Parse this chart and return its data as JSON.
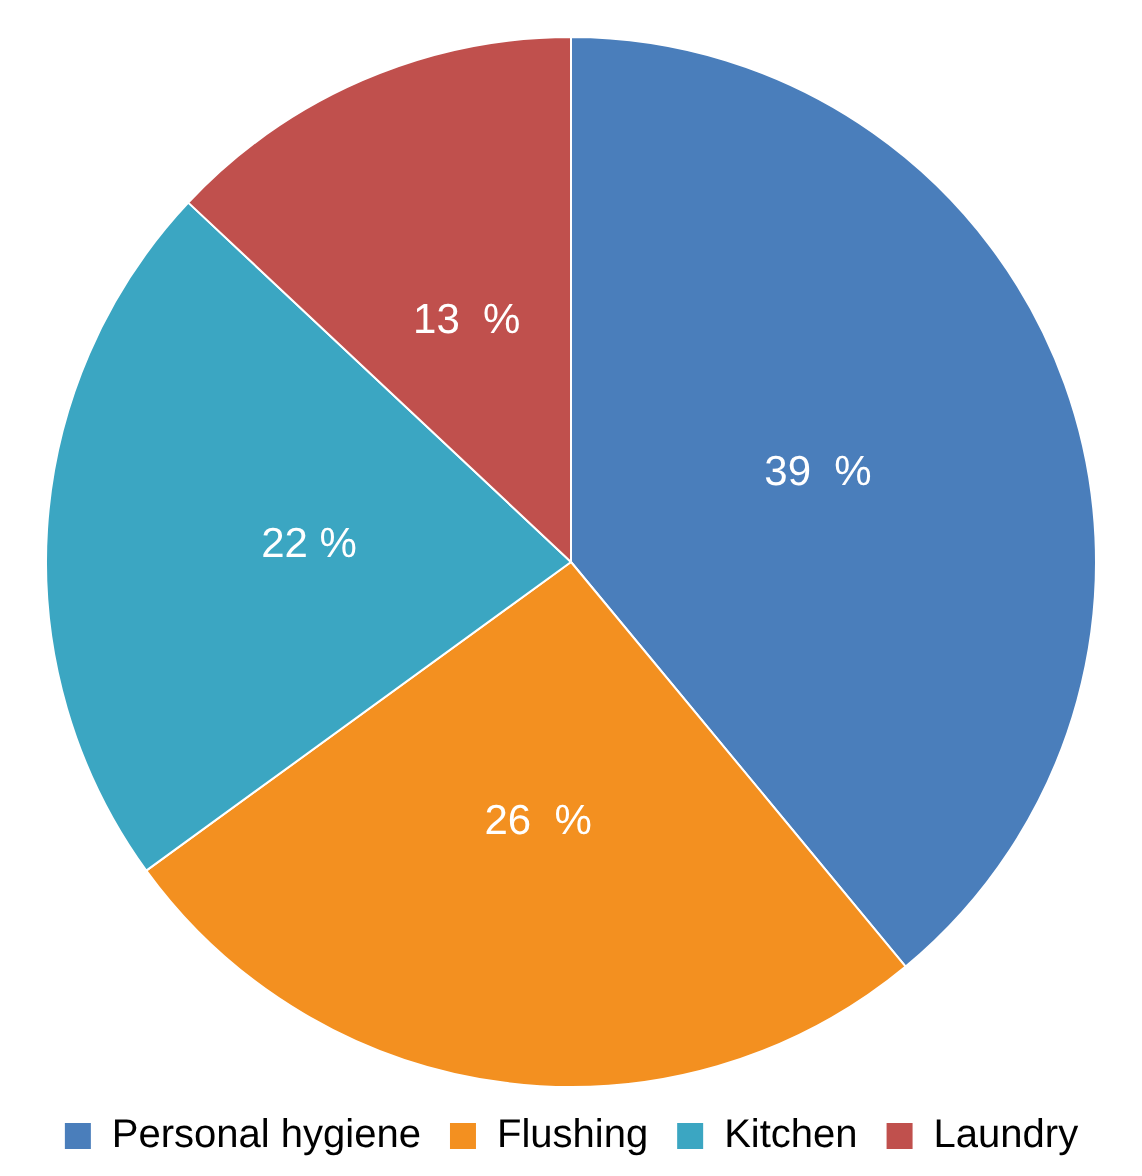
{
  "chart_data": {
    "type": "pie",
    "categories": [
      "Personal hygiene",
      "Flushing",
      "Kitchen",
      "Laundry"
    ],
    "values": [
      39,
      26,
      22,
      13
    ],
    "colors": [
      "#4a7ebb",
      "#f39020",
      "#3ba6c2",
      "#c0504d"
    ],
    "value_labels": [
      "39  %",
      "26  %",
      "22 %",
      "13  %"
    ],
    "legend": "bottom"
  }
}
